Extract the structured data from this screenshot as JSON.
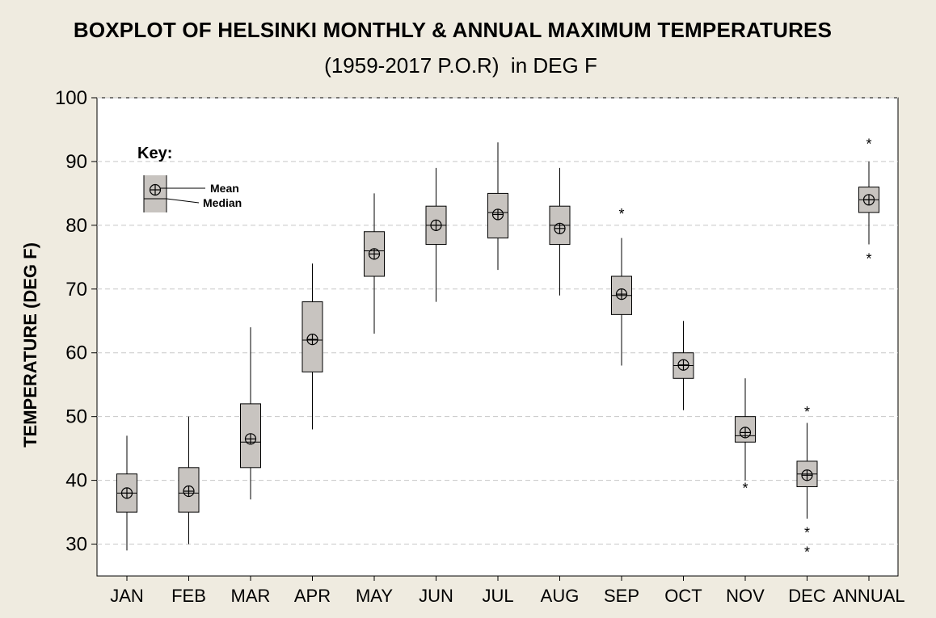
{
  "chart_data": {
    "type": "boxplot",
    "title": "BOXPLOT OF HELSINKI MONTHLY & ANNUAL MAXIMUM TEMPERATURES",
    "subtitle": "(1959-2017 P.O.R)  in DEG F",
    "xlabel": "",
    "ylabel": "TEMPERATURE (DEG F)",
    "ylim": [
      25,
      100
    ],
    "yticks": [
      30,
      40,
      50,
      60,
      70,
      80,
      90,
      100
    ],
    "grid": true,
    "key": {
      "title": "Key:",
      "mean_label": "Mean",
      "median_label": "Median"
    },
    "categories": [
      "JAN",
      "FEB",
      "MAR",
      "APR",
      "MAY",
      "JUN",
      "JUL",
      "AUG",
      "SEP",
      "OCT",
      "NOV",
      "DEC",
      "ANNUAL"
    ],
    "boxes": [
      {
        "min": 29,
        "q1": 35,
        "median": 38,
        "q3": 41,
        "max": 47,
        "mean": 38,
        "outliers": []
      },
      {
        "min": 30,
        "q1": 35,
        "median": 38,
        "q3": 42,
        "max": 50,
        "mean": 38.3,
        "outliers": []
      },
      {
        "min": 37,
        "q1": 42,
        "median": 46,
        "q3": 52,
        "max": 64,
        "mean": 46.5,
        "outliers": []
      },
      {
        "min": 48,
        "q1": 57,
        "median": 62,
        "q3": 68,
        "max": 74,
        "mean": 62.1,
        "outliers": []
      },
      {
        "min": 63,
        "q1": 72,
        "median": 76,
        "q3": 79,
        "max": 85,
        "mean": 75.5,
        "outliers": []
      },
      {
        "min": 68,
        "q1": 77,
        "median": 80,
        "q3": 83,
        "max": 89,
        "mean": 80,
        "outliers": []
      },
      {
        "min": 73,
        "q1": 78,
        "median": 82,
        "q3": 85,
        "max": 93,
        "mean": 81.7,
        "outliers": []
      },
      {
        "min": 69,
        "q1": 77,
        "median": 80,
        "q3": 83,
        "max": 89,
        "mean": 79.5,
        "outliers": []
      },
      {
        "min": 58,
        "q1": 66,
        "median": 69,
        "q3": 72,
        "max": 78,
        "mean": 69.2,
        "outliers": [
          82
        ]
      },
      {
        "min": 51,
        "q1": 56,
        "median": 58,
        "q3": 60,
        "max": 65,
        "mean": 58.1,
        "outliers": []
      },
      {
        "min": 40,
        "q1": 46,
        "median": 47,
        "q3": 50,
        "max": 56,
        "mean": 47.5,
        "outliers": [
          39
        ]
      },
      {
        "min": 34,
        "q1": 39,
        "median": 41,
        "q3": 43,
        "max": 49,
        "mean": 40.8,
        "outliers": [
          51,
          32,
          29
        ]
      },
      {
        "min": 77,
        "q1": 82,
        "median": 84,
        "q3": 86,
        "max": 90,
        "mean": 84,
        "outliers": [
          93,
          75
        ]
      }
    ]
  },
  "colors": {
    "background": "#efebe0",
    "plot_area": "#ffffff",
    "box_fill": "#c8c4c0",
    "grid": "#c8c8c8",
    "line": "#000000"
  }
}
